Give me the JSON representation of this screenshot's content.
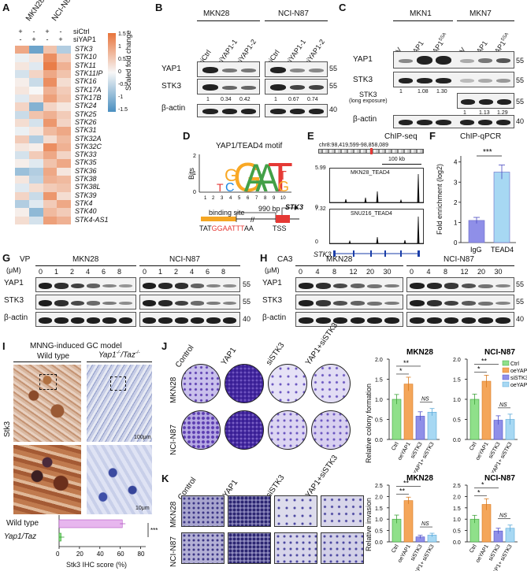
{
  "panel_letters": [
    "A",
    "B",
    "C",
    "D",
    "E",
    "F",
    "G",
    "H",
    "I",
    "J",
    "K"
  ],
  "A": {
    "col_labels": [
      "MKN28",
      "NCI-N87"
    ],
    "row_labels": [
      "siCtrl",
      "siYAP1"
    ],
    "signs_ctrl": [
      "+",
      "-",
      "+",
      "-"
    ],
    "signs_yap": [
      "-",
      "+",
      "-",
      "+"
    ],
    "genes": [
      "STK3",
      "STK10",
      "STK11",
      "STK11IP",
      "STK16",
      "STK17A",
      "STK17B",
      "STK24",
      "STK25",
      "STK26",
      "STK31",
      "STK32A",
      "STK32C",
      "STK33",
      "STK35",
      "STK36",
      "STK38",
      "STK38L",
      "STK39",
      "STK4",
      "STK40",
      "STK4-AS1"
    ],
    "heat": [
      [
        0.9,
        -1.2,
        0.6,
        -0.6
      ],
      [
        -0.1,
        0.2,
        1.2,
        0.5
      ],
      [
        0.2,
        -0.2,
        1.4,
        0.8
      ],
      [
        -0.3,
        0.4,
        0.9,
        0.6
      ],
      [
        0.1,
        -0.4,
        1.2,
        0.3
      ],
      [
        0.2,
        0.0,
        0.8,
        0.5
      ],
      [
        -0.2,
        0.3,
        1.0,
        0.6
      ],
      [
        0.4,
        -1.0,
        0.4,
        0.2
      ],
      [
        -0.4,
        0.6,
        0.8,
        0.5
      ],
      [
        0.3,
        -0.3,
        1.1,
        0.4
      ],
      [
        -0.1,
        0.2,
        0.7,
        0.9
      ],
      [
        0.5,
        -0.6,
        0.3,
        0.7
      ],
      [
        0.2,
        0.1,
        1.2,
        0.8
      ],
      [
        -0.3,
        0.5,
        0.9,
        0.4
      ],
      [
        0.1,
        -0.2,
        0.6,
        0.9
      ],
      [
        -0.8,
        -0.6,
        0.9,
        0.2
      ],
      [
        0.2,
        -0.5,
        0.8,
        0.7
      ],
      [
        -0.2,
        0.3,
        0.5,
        0.6
      ],
      [
        0.4,
        -0.4,
        1.1,
        0.3
      ],
      [
        -0.6,
        -0.2,
        0.5,
        0.9
      ],
      [
        0.1,
        -0.9,
        0.7,
        0.5
      ],
      [
        0.3,
        -0.3,
        1.0,
        0.8
      ]
    ],
    "legend_title": "Scaled fold change",
    "legend_ticks": [
      "1.5",
      "1",
      "0.5",
      "0",
      "-0.5",
      "-1",
      "-1.5"
    ],
    "color_high": "#e8743b",
    "color_mid": "#f7f7f7",
    "color_low": "#4a8fc0"
  },
  "B": {
    "cells": [
      "MKN28",
      "NCI-N87"
    ],
    "lanes": [
      "siCtrl",
      "siYAP1-1",
      "siYAP1-2",
      "siCtrl",
      "siYAP1-1",
      "siYAP1-2"
    ],
    "rows": [
      "YAP1",
      "STK3",
      "β-actin"
    ],
    "quant": [
      "1",
      "0.34",
      "0.42",
      "1",
      "0.67",
      "0.74"
    ],
    "mw": [
      "55",
      "55",
      "40"
    ]
  },
  "C": {
    "cells": [
      "MKN1",
      "MKN7"
    ],
    "lanes": [
      "EV",
      "YAP1",
      "YAP1",
      "EV",
      "YAP1",
      "YAP1"
    ],
    "lane_sup": [
      "",
      "",
      "5SA",
      "",
      "",
      "5SA"
    ],
    "rows": [
      "YAP1",
      "STK3",
      "STK3",
      "β-actin"
    ],
    "long_exposure_label": "(long exposure)",
    "quant1": [
      "1",
      "1.08",
      "1.30"
    ],
    "quant2": [
      "1",
      "1.13",
      "1.29"
    ],
    "mw": [
      "55",
      "55",
      "55",
      "40"
    ]
  },
  "D": {
    "title": "YAP1/TEAD4 motif",
    "ylabel": "Bits",
    "yticks": [
      "2",
      "1",
      "0"
    ],
    "xticks": [
      "1",
      "2",
      "3",
      "4",
      "5",
      "6",
      "7",
      "8",
      "9",
      "10"
    ],
    "binding_site_label": "binding site",
    "distance_label": "990 bp",
    "gene_label": "STK3",
    "tss_label": "TSS",
    "seq_a": "TAT",
    "seq_b": "GGAATTT",
    "seq_c": "AA"
  },
  "E": {
    "title": "ChIP-seq",
    "coords": "chr8:98,419,599-98,858,089",
    "scale_label": "100 kb",
    "track1_label": "MKN28_TEAD4",
    "track1_max": "5.99",
    "track2_label": "SNU216_TEAD4",
    "track2_max": "7.32",
    "track_min": "0",
    "gene_label": "STK3"
  },
  "F": {
    "title": "ChIP-qPCR",
    "ylabel": "Fold enrichment (log2)",
    "yticks": [
      "0",
      "1",
      "2",
      "3",
      "4"
    ],
    "sig": "***",
    "chart_data": {
      "type": "bar",
      "categories": [
        "IgG",
        "TEAD4"
      ],
      "values": [
        1.1,
        3.5
      ],
      "ylim": [
        0,
        4.3
      ]
    }
  },
  "G": {
    "treatment": "VP",
    "unit": "(μM)",
    "cells": [
      "MKN28",
      "NCI-N87"
    ],
    "doses": [
      "0",
      "1",
      "2",
      "4",
      "6",
      "8"
    ],
    "rows": [
      "YAP1",
      "STK3",
      "β-actin"
    ],
    "mw": [
      "55",
      "55",
      "40"
    ]
  },
  "H": {
    "treatment": "CA3",
    "unit": "(μM)",
    "cells": [
      "MKN28",
      "NCI-N87"
    ],
    "doses": [
      "0",
      "4",
      "8",
      "12",
      "20",
      "30"
    ],
    "rows": [
      "YAP1",
      "STK3",
      "β-actin"
    ],
    "mw": [
      "55",
      "55",
      "40"
    ]
  },
  "I": {
    "title": "MNNG-induced GC model",
    "col1": "Wild type",
    "col2_main": "Yap1",
    "col2_sup": "-/-",
    "col2_sep": "/Taz",
    "col2_sup2": "-/-",
    "row_label": "Stk3",
    "scale1": "100μm",
    "scale2": "10μm",
    "bar_labels": [
      "Wild type",
      "Yap1/Taz"
    ],
    "xlabel": "Stk3 IHC score (%)",
    "xticks": [
      "0",
      "20",
      "40",
      "60",
      "80"
    ],
    "sig": "***",
    "chart_data": {
      "type": "bar",
      "categories": [
        "Wild type",
        "Yap1-/-/Taz-/-"
      ],
      "values": [
        62,
        2
      ],
      "xlim": [
        0,
        85
      ]
    }
  },
  "J": {
    "conditions": [
      "Control",
      "YAP1",
      "siSTK3",
      "YAP1+siSTK3"
    ],
    "rows": [
      "MKN28",
      "NCI-N87"
    ],
    "ylabel": "Relative colony formation",
    "legend": [
      "Ctrl",
      "oeYAP1",
      "siSTK3",
      "oeYAP1+ siSTK3"
    ],
    "bar_colors": [
      "#8fe08a",
      "#f4a65a",
      "#8f8fe8",
      "#a7d8f3"
    ],
    "chart_data": [
      {
        "type": "bar",
        "title": "MKN28",
        "categories": [
          "Ctrl",
          "oeYAP1",
          "siSTK3",
          "oeYAP1+ siSTK3"
        ],
        "values": [
          1.0,
          1.38,
          0.58,
          0.68
        ],
        "errors": [
          0.12,
          0.17,
          0.11,
          0.09
        ],
        "ylim": [
          0,
          2.0
        ],
        "yticks": [
          "0.0",
          "0.5",
          "1.0",
          "1.5",
          "2.0"
        ],
        "sig": [
          "**",
          "*",
          "NS"
        ]
      },
      {
        "type": "bar",
        "title": "NCI-N87",
        "categories": [
          "Ctrl",
          "oeYAP1",
          "siSTK3",
          "oeYAP1+ siSTK3"
        ],
        "values": [
          1.0,
          1.45,
          0.48,
          0.5
        ],
        "errors": [
          0.13,
          0.15,
          0.11,
          0.13
        ],
        "ylim": [
          0,
          2.0
        ],
        "yticks": [
          "0.0",
          "0.5",
          "1.0",
          "1.5",
          "2.0"
        ],
        "sig": [
          "**",
          "*",
          "NS"
        ]
      }
    ]
  },
  "K": {
    "conditions": [
      "Control",
      "YAP1",
      "siSTK3",
      "YAP1+siSTK3"
    ],
    "rows": [
      "MKN28",
      "NCI-N87"
    ],
    "ylabel": "Relative invasion",
    "chart_data": [
      {
        "type": "bar",
        "title": "MKN28",
        "categories": [
          "Ctrl",
          "oeYAP1",
          "siSTK3",
          "oeYAP1+ siSTK3"
        ],
        "values": [
          1.0,
          1.82,
          0.22,
          0.3
        ],
        "errors": [
          0.18,
          0.15,
          0.07,
          0.08
        ],
        "ylim": [
          0,
          2.5
        ],
        "yticks": [
          "0.0",
          "0.5",
          "1.0",
          "1.5",
          "2.0",
          "2.5"
        ],
        "sig": [
          "**",
          "**",
          "NS"
        ]
      },
      {
        "type": "bar",
        "title": "NCI-N87",
        "categories": [
          "Ctrl",
          "oeYAP1",
          "siSTK3",
          "oeYAP1+ siSTK3"
        ],
        "values": [
          1.0,
          1.65,
          0.48,
          0.6
        ],
        "errors": [
          0.17,
          0.25,
          0.12,
          0.14
        ],
        "ylim": [
          0,
          2.5
        ],
        "yticks": [
          "0.0",
          "0.5",
          "1.0",
          "1.5",
          "2.0",
          "2.5"
        ],
        "sig": [
          "*",
          "*",
          "NS"
        ]
      }
    ]
  }
}
